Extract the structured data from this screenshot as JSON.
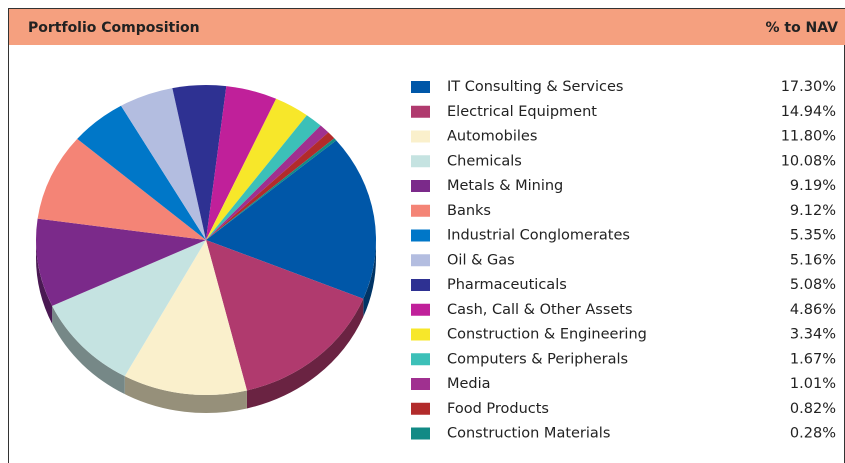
{
  "chart_data": {
    "type": "pie",
    "title": "Portfolio Composition",
    "column_label": "% to NAV",
    "categories": [
      "IT Consulting & Services",
      "Electrical Equipment",
      "Automobiles",
      "Chemicals",
      "Metals & Mining",
      "Banks",
      "Industrial Conglomerates",
      "Oil & Gas",
      "Pharmaceuticals",
      "Cash, Call & Other Assets",
      "Construction & Engineering",
      "Computers & Peripherals",
      "Media",
      "Food Products",
      "Construction Materials"
    ],
    "values": [
      17.3,
      14.94,
      11.8,
      10.08,
      9.19,
      9.12,
      5.35,
      5.16,
      5.08,
      4.86,
      3.34,
      1.67,
      1.01,
      0.82,
      0.28
    ],
    "value_labels": [
      "17.30%",
      "14.94%",
      "11.80%",
      "10.08%",
      "9.19%",
      "9.12%",
      "5.35%",
      "5.16%",
      "5.08%",
      "4.86%",
      "3.34%",
      "1.67%",
      "1.01%",
      "0.82%",
      "0.28%"
    ],
    "colors": [
      "#0057a8",
      "#b03a6e",
      "#faf0cc",
      "#c5e3e1",
      "#7b2a8a",
      "#f48476",
      "#0077c8",
      "#b3bde0",
      "#2e3192",
      "#c0209a",
      "#f7e72a",
      "#3cc0b8",
      "#a03090",
      "#b22b2b",
      "#128a85"
    ],
    "legend": "right"
  }
}
